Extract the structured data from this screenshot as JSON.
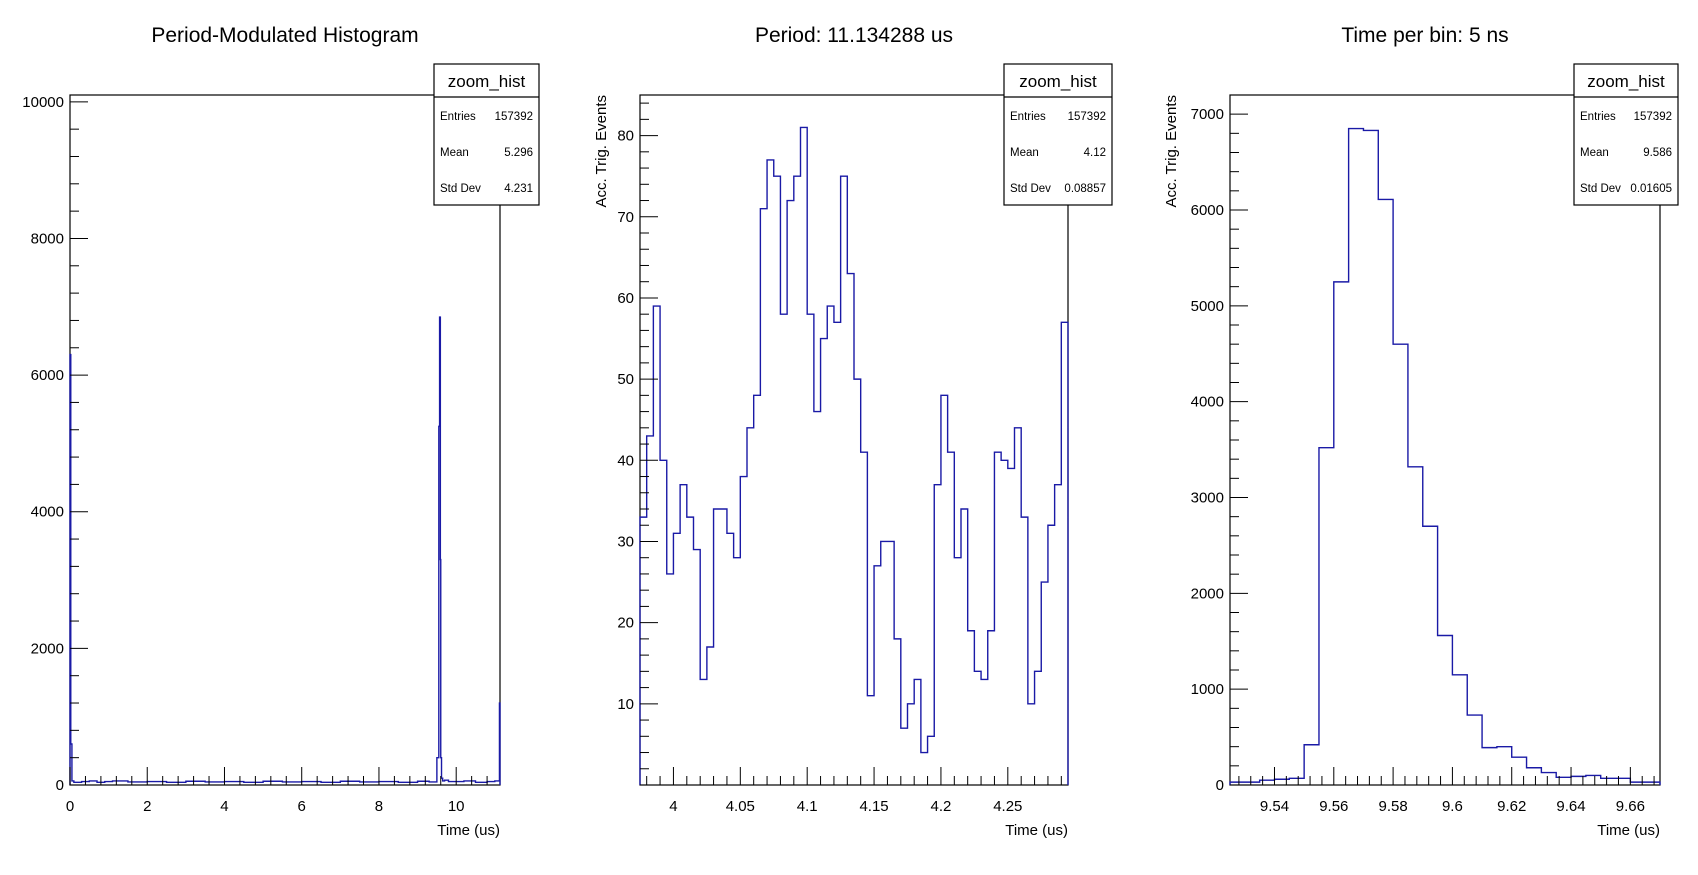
{
  "chart_data": [
    {
      "type": "histogram",
      "title": "Period-Modulated Histogram",
      "xlabel": "Time (us)",
      "ylabel": "",
      "xlim": [
        0,
        11.134288
      ],
      "ylim": [
        0,
        10100
      ],
      "xticks": [
        0,
        2,
        4,
        6,
        8,
        10
      ],
      "xtick_labels": [
        "0",
        "2",
        "4",
        "6",
        "8",
        "10"
      ],
      "yticks": [
        0,
        2000,
        4000,
        6000,
        8000,
        10000
      ],
      "ytick_labels": [
        "0",
        "2000",
        "4000",
        "6000",
        "8000",
        "10000"
      ],
      "stats": {
        "name": "zoom_hist",
        "entries_label": "Entries",
        "entries": "157392",
        "mean_label": "Mean",
        "mean": "5.296",
        "std_label": "Std Dev",
        "std": "4.231"
      },
      "x": [
        0.0,
        0.02,
        0.05,
        0.1,
        0.3,
        0.5,
        0.7,
        0.9,
        1.1,
        1.5,
        2.0,
        2.5,
        3.0,
        3.5,
        4.0,
        4.5,
        5.0,
        5.5,
        6.0,
        6.5,
        7.0,
        7.5,
        8.0,
        8.5,
        9.0,
        9.3,
        9.5,
        9.55,
        9.57,
        9.59,
        9.6,
        9.62,
        9.65,
        9.7,
        9.8,
        10.0,
        10.2,
        10.5,
        10.8,
        11.0,
        11.12
      ],
      "values": [
        6300,
        600,
        60,
        40,
        50,
        60,
        40,
        50,
        60,
        45,
        50,
        40,
        55,
        45,
        50,
        40,
        55,
        45,
        50,
        40,
        55,
        45,
        50,
        40,
        55,
        45,
        400,
        5250,
        6850,
        3300,
        400,
        100,
        60,
        70,
        50,
        50,
        60,
        40,
        50,
        60,
        1200
      ]
    },
    {
      "type": "histogram",
      "title": "Period: 11.134288 us",
      "xlabel": "Time (us)",
      "ylabel": "Acc. Trig. Events",
      "xlim": [
        3.975,
        4.295
      ],
      "ylim": [
        0,
        85
      ],
      "xticks": [
        4,
        4.05,
        4.1,
        4.15,
        4.2,
        4.25
      ],
      "xtick_labels": [
        "4",
        "4.05",
        "4.1",
        "4.15",
        "4.2",
        "4.25"
      ],
      "yticks": [
        10,
        20,
        30,
        40,
        50,
        60,
        70,
        80
      ],
      "ytick_labels": [
        "10",
        "20",
        "30",
        "40",
        "50",
        "60",
        "70",
        "80"
      ],
      "stats": {
        "name": "zoom_hist",
        "entries_label": "Entries",
        "entries": "157392",
        "mean_label": "Mean",
        "mean": "4.12",
        "std_label": "Std Dev",
        "std": "0.08857"
      },
      "bin_start": 3.975,
      "bin_width": 0.005,
      "values": [
        33,
        43,
        59,
        40,
        26,
        31,
        37,
        33,
        29,
        13,
        17,
        34,
        34,
        31,
        28,
        38,
        44,
        48,
        71,
        77,
        75,
        58,
        72,
        75,
        81,
        58,
        46,
        55,
        59,
        57,
        75,
        63,
        50,
        41,
        11,
        27,
        30,
        30,
        18,
        7,
        10,
        13,
        4,
        6,
        37,
        48,
        41,
        28,
        34,
        19,
        14,
        13,
        19,
        41,
        40,
        39,
        44,
        33,
        10,
        14,
        25,
        32,
        37,
        57
      ]
    },
    {
      "type": "histogram",
      "title": "Time per bin: 5 ns",
      "xlabel": "Time (us)",
      "ylabel": "Acc. Trig. Events",
      "xlim": [
        9.525,
        9.67
      ],
      "ylim": [
        0,
        7200
      ],
      "xticks": [
        9.54,
        9.56,
        9.58,
        9.6,
        9.62,
        9.64,
        9.66
      ],
      "xtick_labels": [
        "9.54",
        "9.56",
        "9.58",
        "9.6",
        "9.62",
        "9.64",
        "9.66"
      ],
      "yticks": [
        0,
        1000,
        2000,
        3000,
        4000,
        5000,
        6000,
        7000
      ],
      "ytick_labels": [
        "0",
        "1000",
        "2000",
        "3000",
        "4000",
        "5000",
        "6000",
        "7000"
      ],
      "stats": {
        "name": "zoom_hist",
        "entries_label": "Entries",
        "entries": "157392",
        "mean_label": "Mean",
        "mean": "9.586",
        "std_label": "Std Dev",
        "std": "0.01605"
      },
      "bin_start": 9.525,
      "bin_width": 0.005,
      "values": [
        30,
        30,
        50,
        60,
        70,
        420,
        3520,
        5250,
        6850,
        6830,
        6110,
        4600,
        3320,
        2700,
        1560,
        1150,
        730,
        390,
        400,
        290,
        180,
        130,
        80,
        90,
        100,
        70,
        70,
        30,
        30
      ]
    }
  ]
}
